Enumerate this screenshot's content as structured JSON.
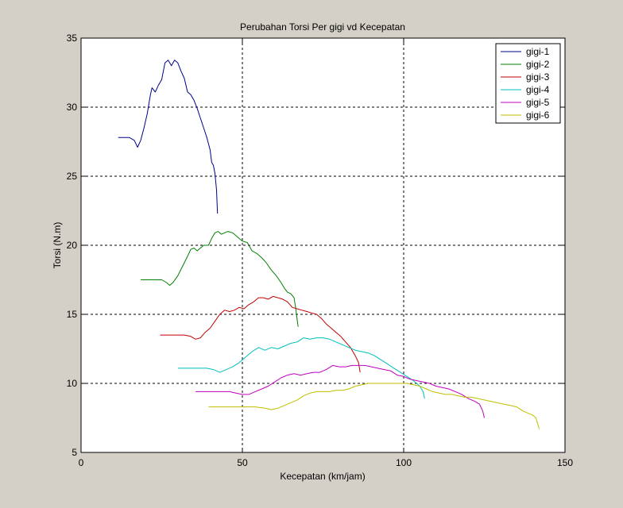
{
  "chart_data": {
    "type": "line",
    "title": "Perubahan Torsi Per gigi vd Kecepatan",
    "xlabel": "Kecepatan (km/jam)",
    "ylabel": "Torsi (N.m)",
    "xlim": [
      0,
      150
    ],
    "ylim": [
      5,
      35
    ],
    "xticks": [
      0,
      50,
      100,
      150
    ],
    "yticks": [
      5,
      10,
      15,
      20,
      25,
      30,
      35
    ],
    "grid": true,
    "legend_position": "top-right",
    "series": [
      {
        "name": "gigi-1",
        "color": "#00008b",
        "points": [
          [
            11.5,
            27.8
          ],
          [
            15,
            27.8
          ],
          [
            16.5,
            27.6
          ],
          [
            17.5,
            27.1
          ],
          [
            18.5,
            27.6
          ],
          [
            19.5,
            28.5
          ],
          [
            20.5,
            29.5
          ],
          [
            21.5,
            30.9
          ],
          [
            22,
            31.4
          ],
          [
            23,
            31.1
          ],
          [
            24,
            31.6
          ],
          [
            25,
            32
          ],
          [
            26,
            33.2
          ],
          [
            27,
            33.4
          ],
          [
            28,
            33
          ],
          [
            29,
            33.4
          ],
          [
            30,
            33.2
          ],
          [
            31,
            32.6
          ],
          [
            32,
            32.1
          ],
          [
            33,
            31.1
          ],
          [
            34,
            30.9
          ],
          [
            35,
            30.5
          ],
          [
            36,
            29.9
          ],
          [
            37,
            29.2
          ],
          [
            38,
            28.5
          ],
          [
            39,
            27.8
          ],
          [
            40,
            26.9
          ],
          [
            40.5,
            26
          ],
          [
            41,
            25.8
          ],
          [
            41.5,
            25.2
          ],
          [
            42,
            24
          ],
          [
            42.3,
            22.3
          ]
        ]
      },
      {
        "name": "gigi-2",
        "color": "#008000",
        "points": [
          [
            18.5,
            17.5
          ],
          [
            23,
            17.5
          ],
          [
            25,
            17.5
          ],
          [
            26.5,
            17.3
          ],
          [
            27.5,
            17.1
          ],
          [
            28.5,
            17.3
          ],
          [
            30,
            17.8
          ],
          [
            31.5,
            18.5
          ],
          [
            33,
            19.2
          ],
          [
            34,
            19.7
          ],
          [
            35,
            19.8
          ],
          [
            36,
            19.6
          ],
          [
            37,
            19.8
          ],
          [
            38,
            20
          ],
          [
            39.5,
            20
          ],
          [
            40.5,
            20.5
          ],
          [
            41.5,
            20.9
          ],
          [
            42.5,
            21
          ],
          [
            43.5,
            20.8
          ],
          [
            44.5,
            20.9
          ],
          [
            45.5,
            21
          ],
          [
            47,
            20.9
          ],
          [
            48.5,
            20.6
          ],
          [
            50,
            20.3
          ],
          [
            51.5,
            20.2
          ],
          [
            53,
            19.6
          ],
          [
            54.5,
            19.4
          ],
          [
            56,
            19.1
          ],
          [
            57.5,
            18.7
          ],
          [
            59,
            18.2
          ],
          [
            60.5,
            17.8
          ],
          [
            62,
            17.3
          ],
          [
            63,
            16.9
          ],
          [
            64,
            16.6
          ],
          [
            65,
            16.5
          ],
          [
            66,
            16.2
          ],
          [
            66.5,
            15.5
          ],
          [
            67,
            14.6
          ],
          [
            67.3,
            14.1
          ]
        ]
      },
      {
        "name": "gigi-3",
        "color": "#c00000",
        "points": [
          [
            24.5,
            13.5
          ],
          [
            30,
            13.5
          ],
          [
            32,
            13.5
          ],
          [
            34,
            13.4
          ],
          [
            35.5,
            13.2
          ],
          [
            37,
            13.3
          ],
          [
            38.5,
            13.7
          ],
          [
            40,
            14
          ],
          [
            41.5,
            14.5
          ],
          [
            43,
            15
          ],
          [
            44.5,
            15.3
          ],
          [
            46,
            15.2
          ],
          [
            47.5,
            15.3
          ],
          [
            49,
            15.5
          ],
          [
            50.5,
            15.4
          ],
          [
            52,
            15.7
          ],
          [
            53.5,
            15.9
          ],
          [
            55,
            16.2
          ],
          [
            56.5,
            16.2
          ],
          [
            58,
            16.1
          ],
          [
            59.5,
            16.3
          ],
          [
            61,
            16.2
          ],
          [
            62.5,
            16.1
          ],
          [
            64,
            15.9
          ],
          [
            65.5,
            15.5
          ],
          [
            67,
            15.4
          ],
          [
            68.5,
            15.3
          ],
          [
            70,
            15.2
          ],
          [
            71.5,
            15.1
          ],
          [
            73,
            15
          ],
          [
            74.5,
            14.7
          ],
          [
            76,
            14.3
          ],
          [
            77.5,
            14
          ],
          [
            79,
            13.7
          ],
          [
            80.5,
            13.4
          ],
          [
            82,
            13
          ],
          [
            83.5,
            12.6
          ],
          [
            85,
            12
          ],
          [
            86,
            11.5
          ],
          [
            86.5,
            10.8
          ]
        ]
      },
      {
        "name": "gigi-4",
        "color": "#00bfbf",
        "points": [
          [
            30,
            11.1
          ],
          [
            35,
            11.1
          ],
          [
            39,
            11.1
          ],
          [
            41,
            11
          ],
          [
            43,
            10.8
          ],
          [
            45,
            11
          ],
          [
            47,
            11.2
          ],
          [
            49,
            11.5
          ],
          [
            51,
            11.9
          ],
          [
            53,
            12.3
          ],
          [
            55,
            12.6
          ],
          [
            57,
            12.4
          ],
          [
            59,
            12.6
          ],
          [
            61,
            12.5
          ],
          [
            63,
            12.7
          ],
          [
            65,
            12.9
          ],
          [
            67,
            13
          ],
          [
            69,
            13.3
          ],
          [
            71,
            13.2
          ],
          [
            73,
            13.3
          ],
          [
            75,
            13.3
          ],
          [
            77,
            13.2
          ],
          [
            79,
            13
          ],
          [
            81,
            12.8
          ],
          [
            83,
            12.6
          ],
          [
            85,
            12.4
          ],
          [
            87,
            12.3
          ],
          [
            89,
            12.2
          ],
          [
            91,
            12
          ],
          [
            93,
            11.7
          ],
          [
            95,
            11.4
          ],
          [
            97,
            11.1
          ],
          [
            99,
            10.8
          ],
          [
            101,
            10.5
          ],
          [
            103,
            10.2
          ],
          [
            105,
            9.8
          ],
          [
            106,
            9.4
          ],
          [
            106.5,
            8.9
          ]
        ]
      },
      {
        "name": "gigi-5",
        "color": "#bf00bf",
        "points": [
          [
            35.5,
            9.4
          ],
          [
            40,
            9.4
          ],
          [
            44,
            9.4
          ],
          [
            46,
            9.4
          ],
          [
            48,
            9.3
          ],
          [
            50,
            9.2
          ],
          [
            52,
            9.2
          ],
          [
            54,
            9.4
          ],
          [
            56,
            9.6
          ],
          [
            58,
            9.8
          ],
          [
            60,
            10.1
          ],
          [
            62,
            10.4
          ],
          [
            64,
            10.6
          ],
          [
            66,
            10.7
          ],
          [
            68,
            10.6
          ],
          [
            70,
            10.7
          ],
          [
            72,
            10.8
          ],
          [
            74,
            10.8
          ],
          [
            76,
            11
          ],
          [
            78,
            11.3
          ],
          [
            80,
            11.2
          ],
          [
            82,
            11.2
          ],
          [
            84,
            11.3
          ],
          [
            86,
            11.3
          ],
          [
            88,
            11.3
          ],
          [
            90,
            11.2
          ],
          [
            92,
            11.1
          ],
          [
            94,
            11
          ],
          [
            96,
            10.9
          ],
          [
            98,
            10.6
          ],
          [
            100,
            10.5
          ],
          [
            102,
            10.3
          ],
          [
            104,
            10.2
          ],
          [
            106,
            10.1
          ],
          [
            108,
            10
          ],
          [
            110,
            9.8
          ],
          [
            112,
            9.7
          ],
          [
            114,
            9.6
          ],
          [
            116,
            9.4
          ],
          [
            118,
            9.2
          ],
          [
            120,
            8.9
          ],
          [
            122,
            8.7
          ],
          [
            123.5,
            8.5
          ],
          [
            124.5,
            8
          ],
          [
            125,
            7.5
          ]
        ]
      },
      {
        "name": "gigi-6",
        "color": "#bfbf00",
        "points": [
          [
            39.5,
            8.3
          ],
          [
            45,
            8.3
          ],
          [
            50,
            8.3
          ],
          [
            54,
            8.3
          ],
          [
            57,
            8.2
          ],
          [
            59,
            8.1
          ],
          [
            61,
            8.2
          ],
          [
            63,
            8.4
          ],
          [
            65,
            8.6
          ],
          [
            67,
            8.8
          ],
          [
            69,
            9.1
          ],
          [
            71,
            9.3
          ],
          [
            73,
            9.4
          ],
          [
            75,
            9.4
          ],
          [
            77,
            9.4
          ],
          [
            79,
            9.5
          ],
          [
            81,
            9.5
          ],
          [
            83,
            9.6
          ],
          [
            85,
            9.8
          ],
          [
            87,
            9.9
          ],
          [
            89,
            10
          ],
          [
            91,
            10
          ],
          [
            93,
            10
          ],
          [
            95,
            10
          ],
          [
            97,
            10
          ],
          [
            99,
            10
          ],
          [
            101,
            10
          ],
          [
            103,
            9.9
          ],
          [
            105,
            9.8
          ],
          [
            107,
            9.6
          ],
          [
            109,
            9.4
          ],
          [
            111,
            9.3
          ],
          [
            113,
            9.2
          ],
          [
            115,
            9.2
          ],
          [
            117,
            9.1
          ],
          [
            119,
            9
          ],
          [
            121,
            9
          ],
          [
            123,
            8.9
          ],
          [
            125,
            8.8
          ],
          [
            127,
            8.7
          ],
          [
            129,
            8.6
          ],
          [
            131,
            8.5
          ],
          [
            133,
            8.4
          ],
          [
            135,
            8.3
          ],
          [
            137,
            8
          ],
          [
            139,
            7.8
          ],
          [
            140,
            7.7
          ],
          [
            141,
            7.5
          ],
          [
            141.5,
            7.1
          ],
          [
            142,
            6.7
          ]
        ]
      }
    ]
  }
}
